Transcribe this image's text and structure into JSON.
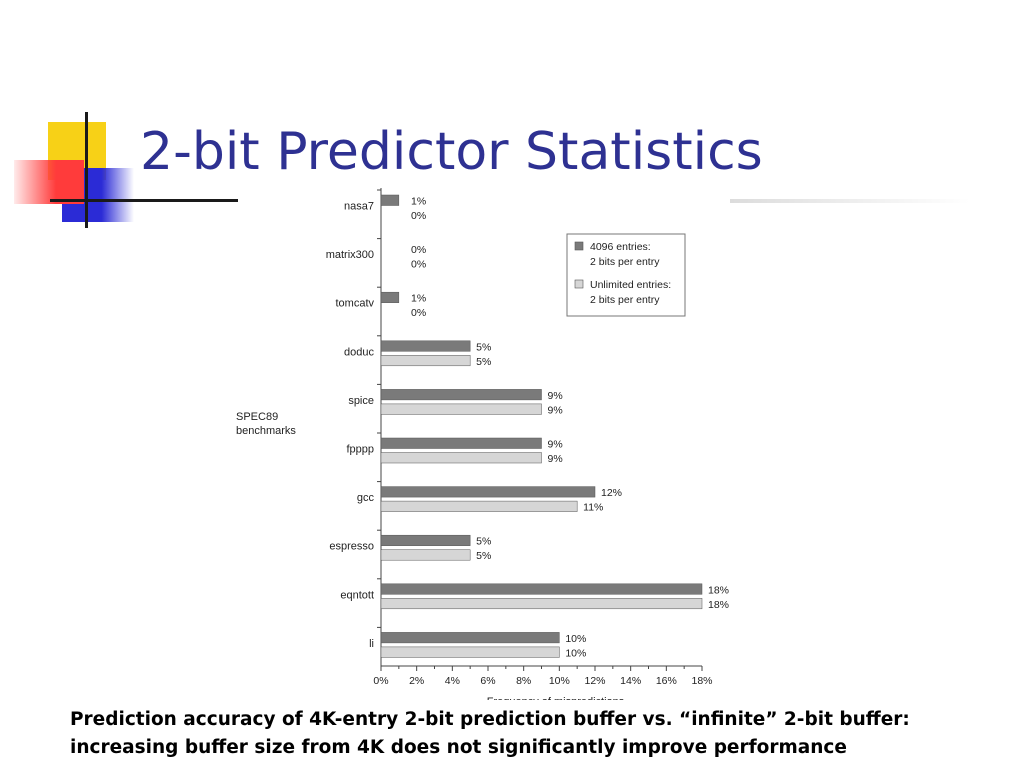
{
  "slide": {
    "title": "2-bit Predictor Statistics",
    "caption_line1": "Prediction accuracy of 4K-entry 2-bit prediction buffer vs. “infinite” 2-bit buffer:",
    "caption_line2": "increasing buffer size from 4K does not significantly improve performance"
  },
  "theme": {
    "title_color": "#2e3192",
    "deco_yellow": "#f7d117",
    "deco_red": "#ff3b3b",
    "deco_blue": "#2b2bd6"
  },
  "chart_data": {
    "type": "bar",
    "orientation": "horizontal",
    "group_label": "SPEC89\nbenchmarks",
    "categories": [
      "nasa7",
      "matrix300",
      "tomcatv",
      "doduc",
      "spice",
      "fpppp",
      "gcc",
      "espresso",
      "eqntott",
      "li"
    ],
    "series": [
      {
        "name": "4096 entries:\n2 bits per entry",
        "color": "#7a7a7a",
        "values": [
          1,
          0,
          1,
          5,
          9,
          9,
          12,
          5,
          18,
          10
        ],
        "labels": [
          "1%",
          "0%",
          "1%",
          "5%",
          "9%",
          "9%",
          "12%",
          "5%",
          "18%",
          "10%"
        ]
      },
      {
        "name": "Unlimited entries:\n2 bits per entry",
        "color": "#d6d6d6",
        "values": [
          0,
          0,
          0,
          5,
          9,
          9,
          11,
          5,
          18,
          10
        ],
        "labels": [
          "0%",
          "0%",
          "0%",
          "5%",
          "9%",
          "9%",
          "11%",
          "5%",
          "18%",
          "10%"
        ]
      }
    ],
    "xticks": [
      "0%",
      "2%",
      "4%",
      "6%",
      "8%",
      "10%",
      "12%",
      "14%",
      "16%",
      "18%"
    ],
    "xlim": [
      0,
      18
    ],
    "xlabel": "Frequency of mispredictions",
    "ylabel": "",
    "legend_position": "top-right",
    "grid": false
  }
}
